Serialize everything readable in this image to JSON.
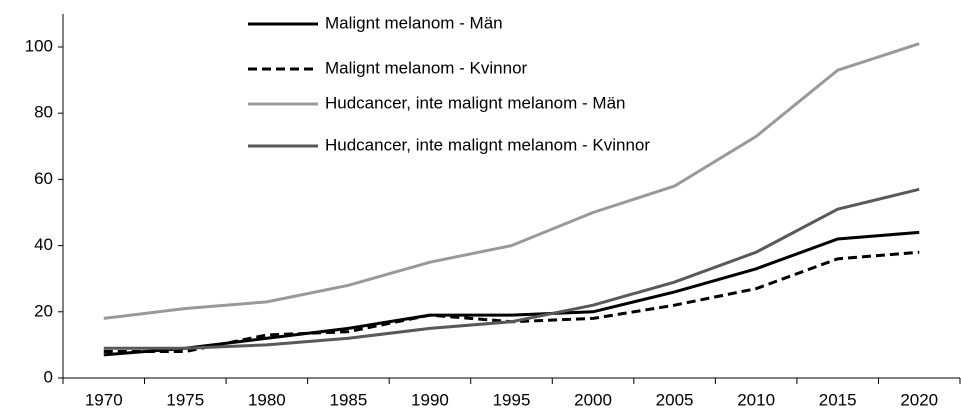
{
  "chart_data": {
    "type": "line",
    "categories": [
      "1970",
      "1975",
      "1980",
      "1985",
      "1990",
      "1995",
      "2000",
      "2005",
      "2010",
      "2015",
      "2020"
    ],
    "series": [
      {
        "name": "Malignt melanom - Män",
        "color": "#000000",
        "dashed": false,
        "values": [
          7,
          9,
          12,
          15,
          19,
          19,
          20,
          26,
          33,
          42,
          44
        ]
      },
      {
        "name": "Malignt melanom - Kvinnor",
        "color": "#000000",
        "dashed": true,
        "values": [
          8,
          8,
          13,
          14,
          19,
          17,
          18,
          22,
          27,
          36,
          38
        ]
      },
      {
        "name": "Hudcancer, inte malignt melanom - Män",
        "color": "#999999",
        "dashed": false,
        "values": [
          18,
          21,
          23,
          28,
          35,
          40,
          50,
          58,
          73,
          93,
          101
        ]
      },
      {
        "name": "Hudcancer, inte malignt melanom - Kvinnor",
        "color": "#595959",
        "dashed": false,
        "values": [
          9,
          9,
          10,
          12,
          15,
          17,
          22,
          29,
          38,
          51,
          57
        ]
      }
    ],
    "ylim": [
      0,
      110
    ],
    "yticks": [
      0,
      20,
      40,
      60,
      80,
      100
    ],
    "grid": false,
    "legend": "top"
  }
}
